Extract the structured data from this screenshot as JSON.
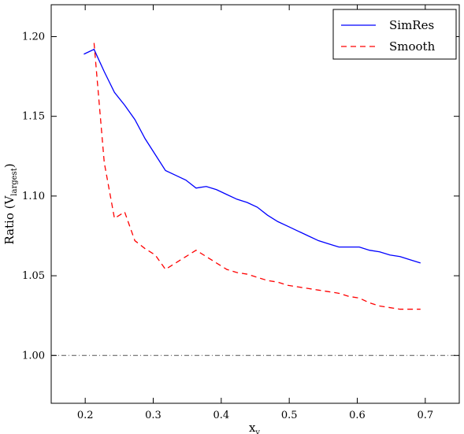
{
  "chart_data": {
    "type": "line",
    "xlabel": "x",
    "xlabel_sub": "v",
    "ylabel": "Ratio (V",
    "ylabel_sub": "largest",
    "ylabel_close": ")",
    "xlim": [
      0.15,
      0.75
    ],
    "ylim": [
      0.97,
      1.22
    ],
    "x_ticks": [
      0.2,
      0.3,
      0.4,
      0.5,
      0.6,
      0.7
    ],
    "x_tick_labels": [
      "0.2",
      "0.3",
      "0.4",
      "0.5",
      "0.6",
      "0.7"
    ],
    "y_ticks": [
      1.0,
      1.05,
      1.1,
      1.15,
      1.2
    ],
    "y_tick_labels": [
      "1.00",
      "1.05",
      "1.10",
      "1.15",
      "1.20"
    ],
    "grid": false,
    "legend_position": "top-right",
    "reference_line": {
      "y": 1.0,
      "style": "dash-dot",
      "color": "#555555"
    },
    "series": [
      {
        "name": "SimRes",
        "color": "#0000ff",
        "style": "solid",
        "x": [
          0.198,
          0.213,
          0.228,
          0.243,
          0.258,
          0.273,
          0.288,
          0.303,
          0.318,
          0.333,
          0.348,
          0.363,
          0.378,
          0.393,
          0.408,
          0.423,
          0.438,
          0.453,
          0.468,
          0.483,
          0.498,
          0.513,
          0.528,
          0.543,
          0.558,
          0.573,
          0.588,
          0.603,
          0.618,
          0.633,
          0.648,
          0.663,
          0.678,
          0.693
        ],
        "y": [
          1.189,
          1.192,
          1.178,
          1.165,
          1.157,
          1.148,
          1.136,
          1.126,
          1.116,
          1.113,
          1.11,
          1.105,
          1.106,
          1.104,
          1.101,
          1.098,
          1.096,
          1.093,
          1.088,
          1.084,
          1.081,
          1.078,
          1.075,
          1.072,
          1.07,
          1.068,
          1.068,
          1.068,
          1.066,
          1.065,
          1.063,
          1.062,
          1.06,
          1.058
        ]
      },
      {
        "name": "Smooth",
        "color": "#ff0000",
        "style": "dashed",
        "x": [
          0.213,
          0.228,
          0.243,
          0.258,
          0.273,
          0.288,
          0.303,
          0.318,
          0.333,
          0.348,
          0.363,
          0.378,
          0.393,
          0.408,
          0.423,
          0.438,
          0.453,
          0.468,
          0.483,
          0.498,
          0.513,
          0.528,
          0.543,
          0.558,
          0.573,
          0.588,
          0.603,
          0.618,
          0.633,
          0.648,
          0.663,
          0.678,
          0.693
        ],
        "y": [
          1.196,
          1.121,
          1.086,
          1.09,
          1.072,
          1.067,
          1.063,
          1.054,
          1.058,
          1.062,
          1.066,
          1.062,
          1.058,
          1.054,
          1.052,
          1.051,
          1.049,
          1.047,
          1.046,
          1.044,
          1.043,
          1.042,
          1.041,
          1.04,
          1.039,
          1.037,
          1.036,
          1.033,
          1.031,
          1.03,
          1.029,
          1.029,
          1.029
        ]
      }
    ]
  }
}
